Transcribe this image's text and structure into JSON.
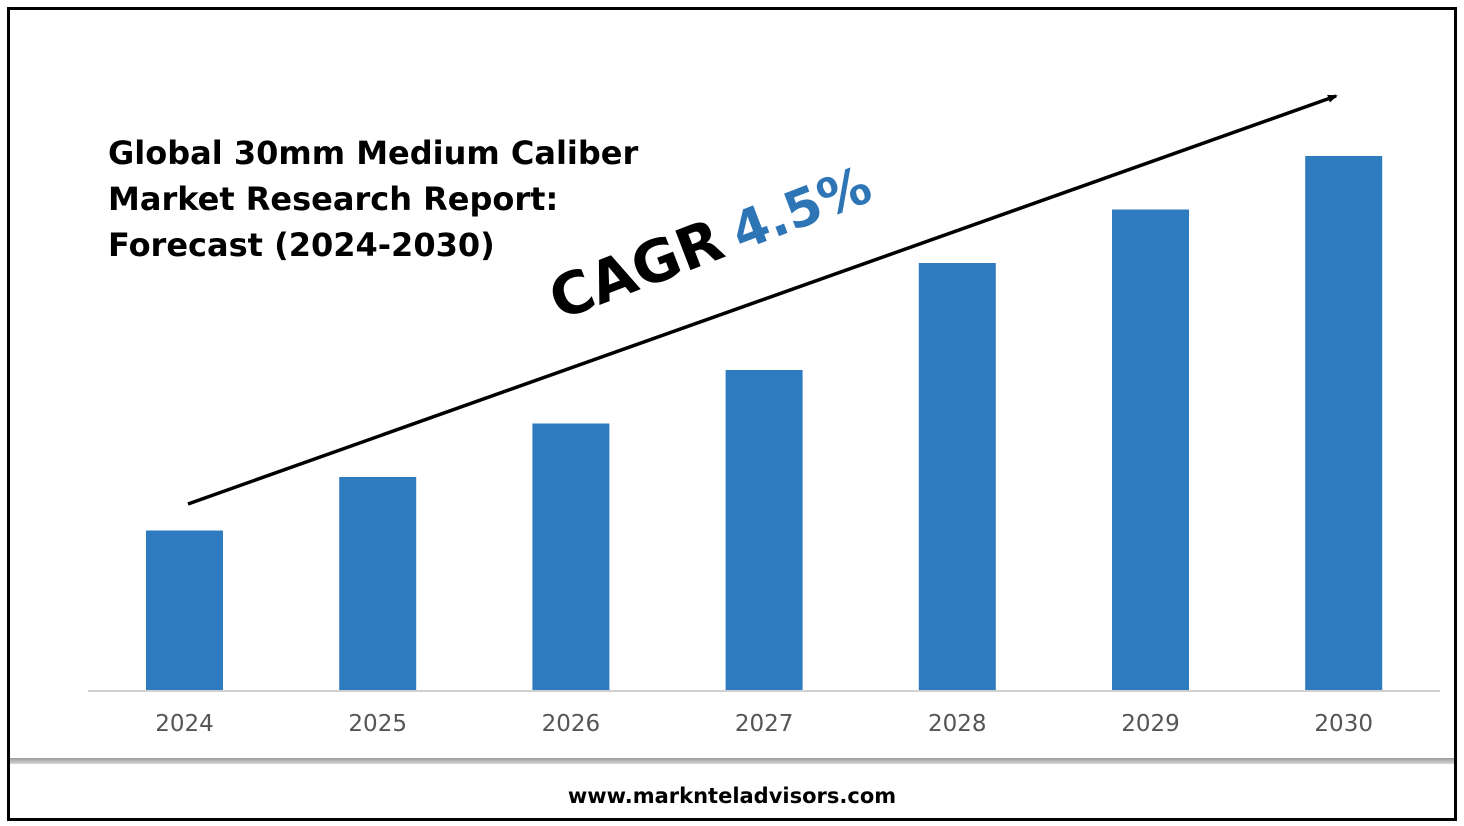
{
  "title_lines": [
    "Global 30mm Medium Caliber",
    "Market Research Report:",
    "Forecast (2024-2030)"
  ],
  "cagr": {
    "label": "CAGR",
    "value": "4.5%"
  },
  "footer": {
    "url": "www.marknteladvisors.com"
  },
  "colors": {
    "bar": "#2e7bbf",
    "cagr_value": "#2e75b6",
    "axis": "#d0d0d0",
    "tick_label": "#555555"
  },
  "chart_data": {
    "type": "bar",
    "categories": [
      "2024",
      "2025",
      "2026",
      "2027",
      "2028",
      "2029",
      "2030"
    ],
    "values": [
      30,
      40,
      50,
      60,
      80,
      90,
      100
    ],
    "title": "Global 30mm Medium Caliber Market Research Report: Forecast (2024-2030)",
    "xlabel": "",
    "ylabel": "",
    "ylim": [
      0,
      100
    ],
    "grid": false,
    "legend": "none",
    "annotation": "CAGR 4.5%",
    "trend_arrow": true
  }
}
